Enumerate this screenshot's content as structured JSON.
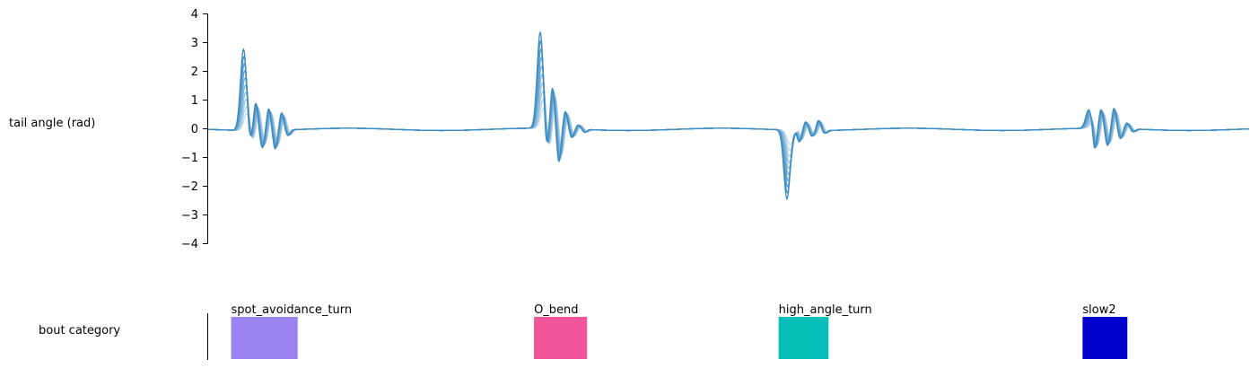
{
  "chart_data": [
    {
      "type": "line",
      "ylabel": "tail angle (rad)",
      "ylim": [
        -4,
        4
      ],
      "yticks": [
        4,
        3,
        2,
        1,
        0,
        -1,
        -2,
        -3,
        -4
      ],
      "ytick_labels": [
        "4",
        "3",
        "2",
        "1",
        "0",
        "−1",
        "−2",
        "−3",
        "−4"
      ],
      "xlim": [
        0,
        100
      ],
      "grid": false,
      "n_traces": 10,
      "bouts": [
        {
          "start": 2.4,
          "peak_x": 3.4,
          "peaks": [
            2.83,
            -0.5,
            0.95,
            -0.6,
            0.75,
            -0.65,
            0.6,
            -0.2
          ]
        },
        {
          "start": 31.3,
          "peak_x": 31.9,
          "peaks": [
            3.35,
            -0.9,
            1.4,
            -1.15,
            0.6,
            -0.3,
            0.15,
            -0.1
          ]
        },
        {
          "start": 54.8,
          "peak_x": 55.6,
          "peaks": [
            -2.4,
            0.0,
            -0.4,
            0.3,
            -0.2,
            0.35,
            -0.1,
            0.0
          ]
        },
        {
          "start": 84.2,
          "peak_x": 84.6,
          "peaks": [
            0.65,
            -0.8,
            0.65,
            -0.6,
            0.7,
            -0.35,
            0.2,
            -0.1
          ]
        }
      ],
      "colors": {
        "line_dark": "#3b8bc2",
        "line_light": "#d3e3ef"
      }
    },
    {
      "type": "bar",
      "ylabel": "bout category",
      "categories": [
        {
          "label": "spot_avoidance_turn",
          "x": [
            2.2,
            8.6
          ],
          "color": "#9b84f0"
        },
        {
          "label": "O_bend",
          "x": [
            31.3,
            36.4
          ],
          "color": "#ef5598"
        },
        {
          "label": "high_angle_turn",
          "x": [
            54.8,
            59.6
          ],
          "color": "#06bdb8"
        },
        {
          "label": "slow2",
          "x": [
            84.0,
            88.3
          ],
          "color": "#0000cc"
        }
      ]
    }
  ]
}
